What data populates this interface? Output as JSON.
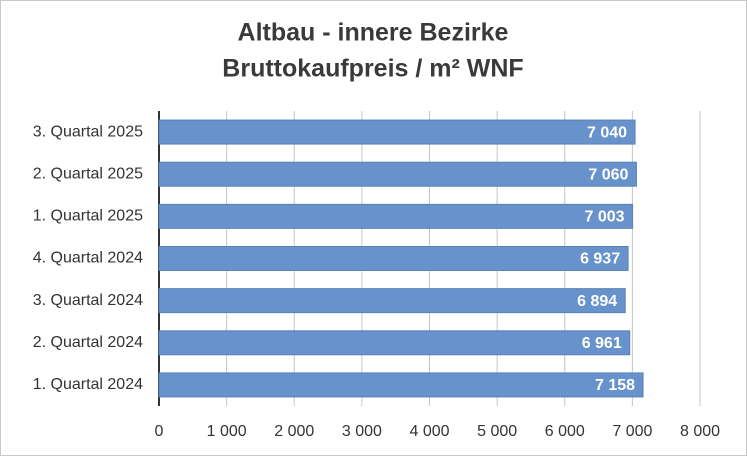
{
  "chart_data": {
    "type": "hbar",
    "title": [
      "Altbau - innere Bezirke",
      "Bruttokaufpreis / m² WNF"
    ],
    "categories": [
      "3. Quartal 2025",
      "2. Quartal 2025",
      "1. Quartal 2025",
      "4. Quartal 2024",
      "3. Quartal 2024",
      "2. Quartal 2024",
      "1. Quartal 2024"
    ],
    "values": [
      7040,
      7060,
      7003,
      6937,
      6894,
      6961,
      7158
    ],
    "value_labels": [
      "7 040",
      "7 060",
      "7 003",
      "6 937",
      "6 894",
      "6 961",
      "7 158"
    ],
    "color": "#6892cb",
    "xlim": [
      0,
      8000
    ],
    "xticks": [
      0,
      {
        "value": 1000,
        "label": "1 000"
      },
      {
        "value": 2000,
        "label": "2 000"
      },
      {
        "value": 3000,
        "label": "3 000"
      },
      {
        "value": 4000,
        "label": "4 000"
      },
      {
        "value": 5000,
        "label": "5 000"
      },
      {
        "value": 6000,
        "label": "6 000"
      },
      {
        "value": 7000,
        "label": "7 000"
      },
      {
        "value": 8000,
        "label": "8 000"
      }
    ],
    "grid": true
  }
}
